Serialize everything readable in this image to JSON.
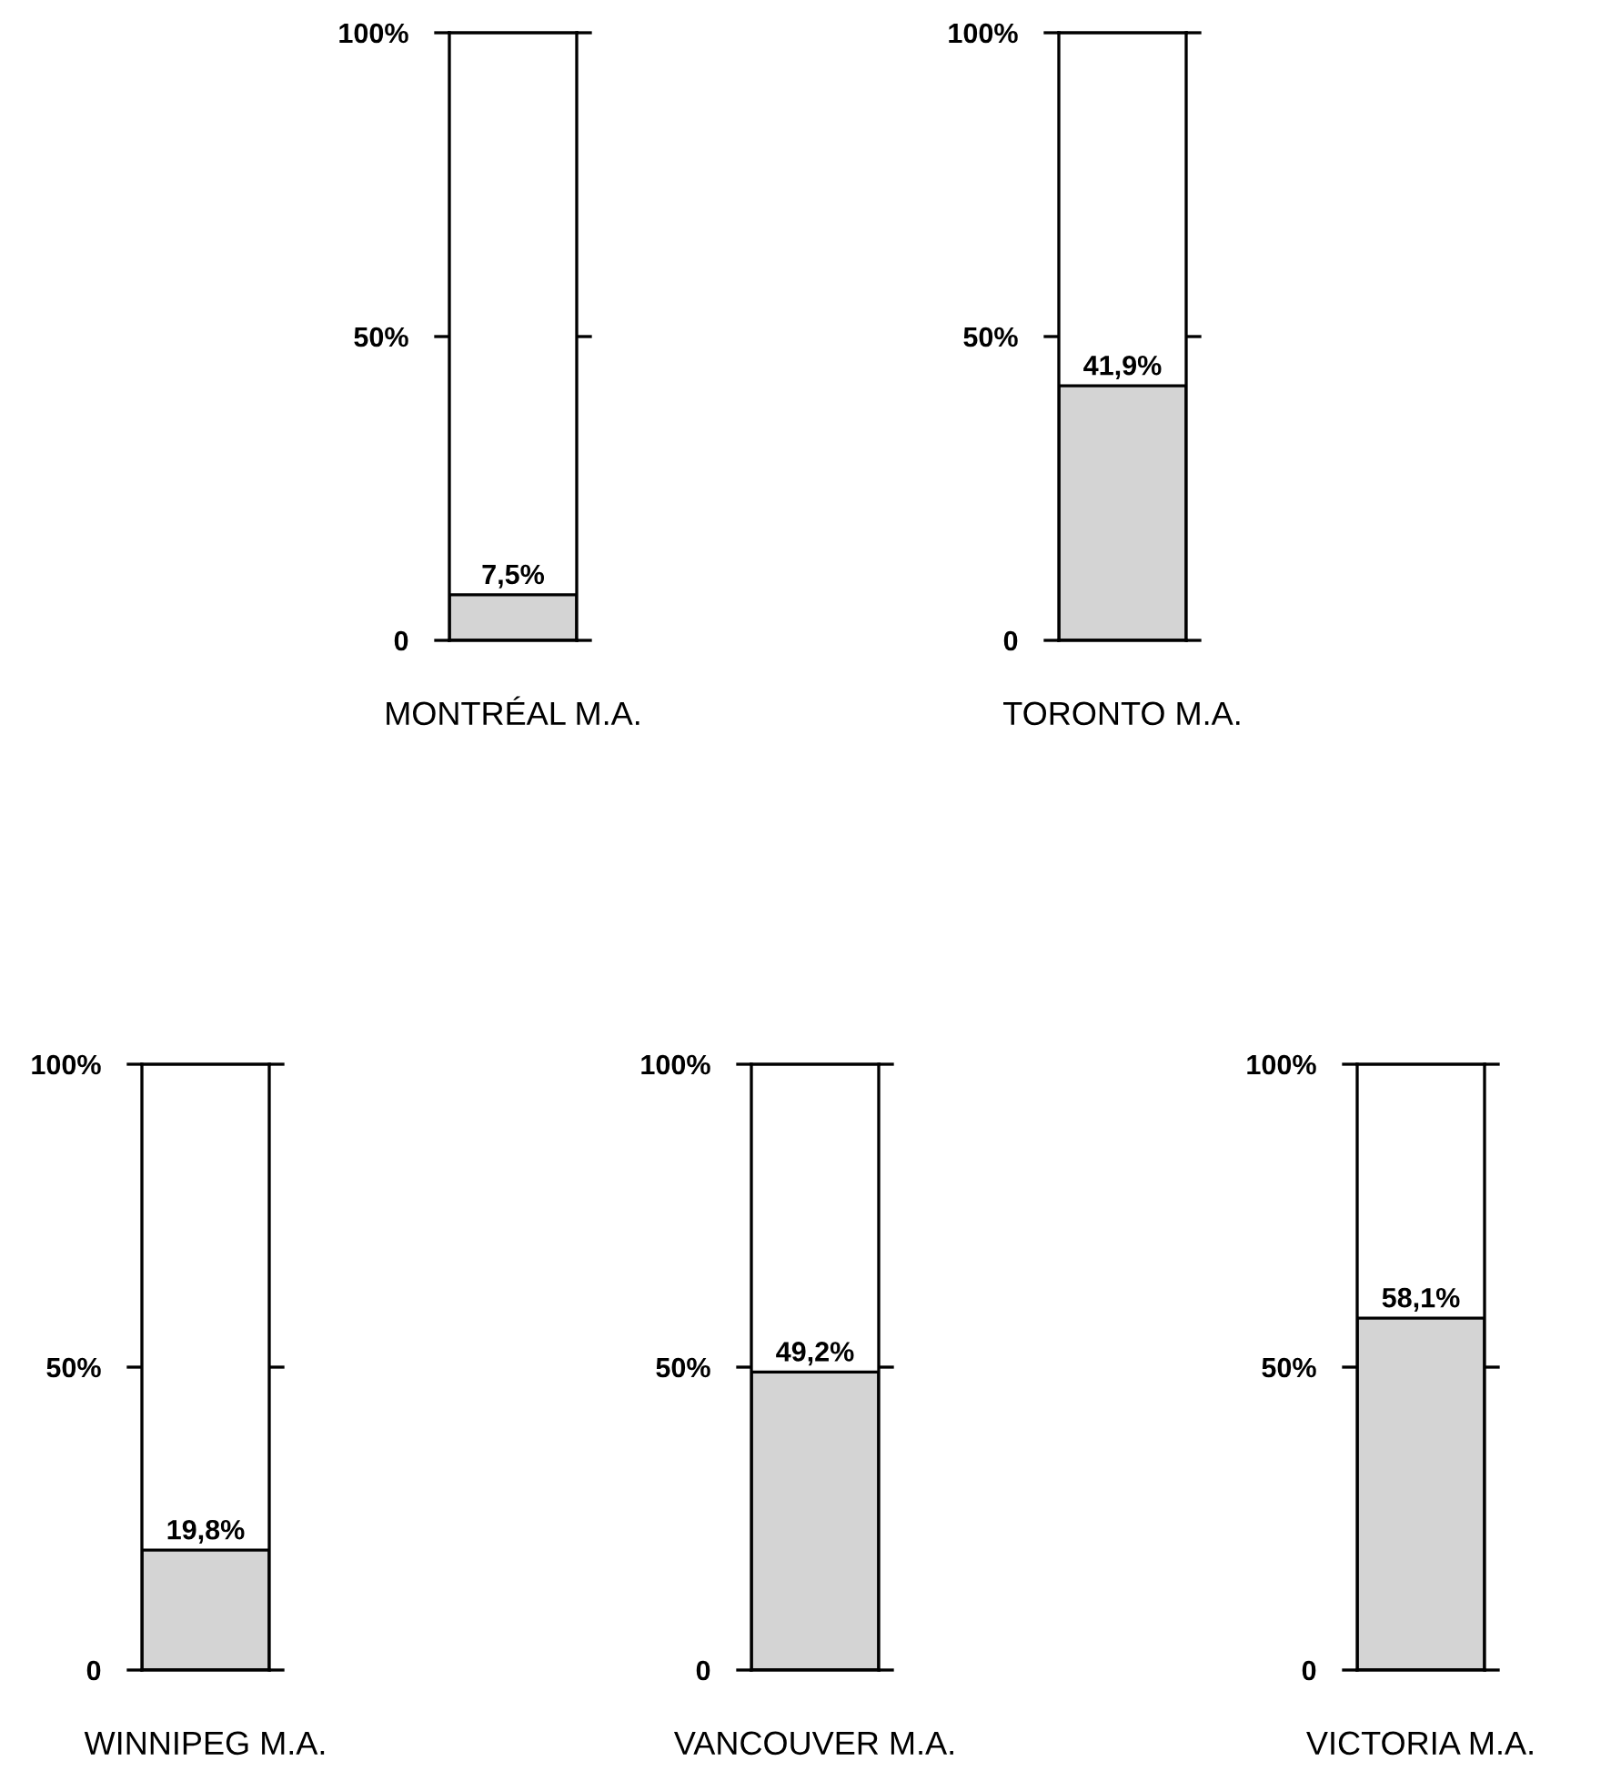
{
  "chart_data": [
    {
      "type": "bar",
      "categories": [
        "MONTRÉAL M.A."
      ],
      "series": [
        {
          "color": "#d4d4d4",
          "values": [
            7.5
          ],
          "value_labels": [
            "7,5%"
          ]
        }
      ],
      "ylim": [
        0,
        100
      ],
      "yticks": [
        {
          "value": 0,
          "label": "0"
        },
        {
          "value": 50,
          "label": "50%"
        },
        {
          "value": 100,
          "label": "100%"
        }
      ],
      "grid": false
    },
    {
      "type": "bar",
      "categories": [
        "TORONTO M.A."
      ],
      "series": [
        {
          "color": "#d4d4d4",
          "values": [
            41.9
          ],
          "value_labels": [
            "41,9%"
          ]
        }
      ],
      "ylim": [
        0,
        100
      ],
      "yticks": [
        {
          "value": 0,
          "label": "0"
        },
        {
          "value": 50,
          "label": "50%"
        },
        {
          "value": 100,
          "label": "100%"
        }
      ],
      "grid": false
    },
    {
      "type": "bar",
      "categories": [
        "WINNIPEG M.A."
      ],
      "series": [
        {
          "color": "#d4d4d4",
          "values": [
            19.8
          ],
          "value_labels": [
            "19,8%"
          ]
        }
      ],
      "ylim": [
        0,
        100
      ],
      "yticks": [
        {
          "value": 0,
          "label": "0"
        },
        {
          "value": 50,
          "label": "50%"
        },
        {
          "value": 100,
          "label": "100%"
        }
      ],
      "grid": false
    },
    {
      "type": "bar",
      "categories": [
        "VANCOUVER M.A."
      ],
      "series": [
        {
          "color": "#d4d4d4",
          "values": [
            49.2
          ],
          "value_labels": [
            "49,2%"
          ]
        }
      ],
      "ylim": [
        0,
        100
      ],
      "yticks": [
        {
          "value": 0,
          "label": "0"
        },
        {
          "value": 50,
          "label": "50%"
        },
        {
          "value": 100,
          "label": "100%"
        }
      ],
      "grid": false
    },
    {
      "type": "bar",
      "categories": [
        "VICTORIA M.A."
      ],
      "series": [
        {
          "color": "#d4d4d4",
          "values": [
            58.1
          ],
          "value_labels": [
            "58,1%"
          ]
        }
      ],
      "ylim": [
        0,
        100
      ],
      "yticks": [
        {
          "value": 0,
          "label": "0"
        },
        {
          "value": 50,
          "label": "50%"
        },
        {
          "value": 100,
          "label": "100%"
        }
      ],
      "grid": false
    }
  ]
}
